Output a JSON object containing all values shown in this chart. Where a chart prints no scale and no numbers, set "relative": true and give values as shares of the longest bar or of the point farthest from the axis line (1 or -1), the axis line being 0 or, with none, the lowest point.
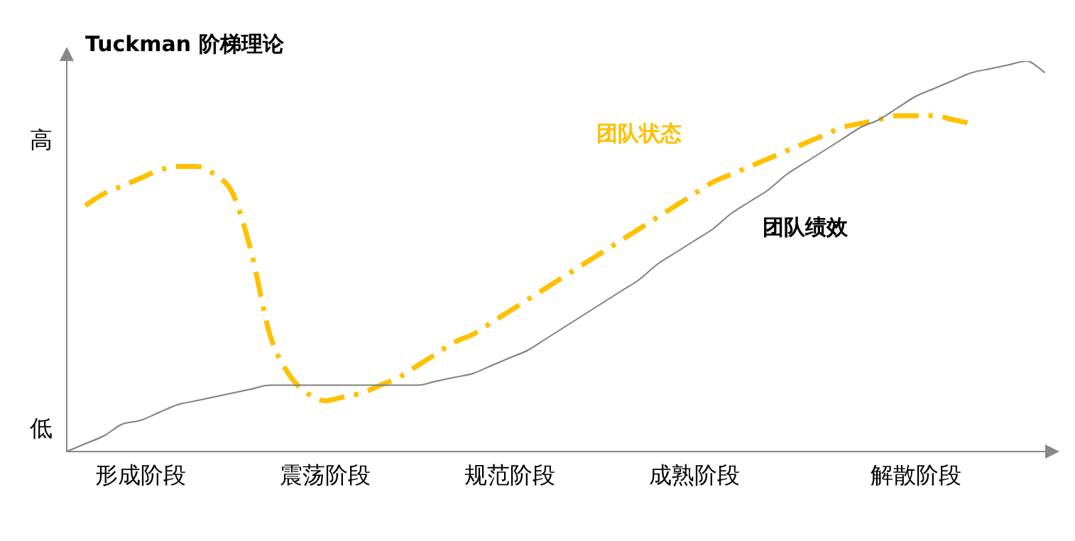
{
  "chart_data": {
    "type": "line",
    "title": "Tuckman 阶梯理论",
    "relative": true,
    "annotations": [
      "高",
      "低"
    ],
    "categories": [
      null,
      null,
      null,
      null,
      "形成阶段",
      null,
      null,
      null,
      null,
      null,
      null,
      null,
      null,
      null,
      "震荡阶段",
      null,
      null,
      null,
      null,
      null,
      null,
      null,
      null,
      null,
      "规范阶段",
      null,
      null,
      null,
      null,
      null,
      null,
      null,
      null,
      null,
      "成熟阶段",
      null,
      null,
      null,
      null,
      null,
      null,
      null,
      null,
      null,
      null,
      null,
      "解散阶段",
      null,
      null,
      null,
      null,
      null,
      null,
      null
    ],
    "grid": false,
    "legend": false,
    "marker": "none",
    "series": [
      {
        "name": "团队状态",
        "color": "#ffc000",
        "line_style": "dashed",
        "values": [
          null,
          0.63,
          0.66,
          0.68,
          0.7,
          0.72,
          0.73,
          0.73,
          0.71,
          0.66,
          0.51,
          0.3,
          0.2,
          0.15,
          0.13,
          0.14,
          0.15,
          0.17,
          0.19,
          0.22,
          0.25,
          0.28,
          0.3,
          0.33,
          0.36,
          0.39,
          0.42,
          0.45,
          0.48,
          0.51,
          0.54,
          0.57,
          0.6,
          0.63,
          0.66,
          0.69,
          0.71,
          0.73,
          0.75,
          0.77,
          0.79,
          0.81,
          0.83,
          0.84,
          0.85,
          0.86,
          0.86,
          0.86,
          0.85,
          0.84,
          null,
          null,
          null,
          null
        ]
      },
      {
        "name": "团队绩效",
        "color": "#808080",
        "line_style": "solid",
        "values": [
          0,
          0.02,
          0.04,
          0.07,
          0.08,
          0.1,
          0.12,
          0.13,
          0.14,
          0.15,
          0.16,
          0.17,
          0.17,
          0.17,
          0.17,
          0.17,
          0.17,
          0.17,
          0.17,
          0.17,
          0.18,
          0.19,
          0.2,
          0.22,
          0.24,
          0.26,
          0.29,
          0.32,
          0.35,
          0.38,
          0.41,
          0.44,
          0.48,
          0.51,
          0.54,
          0.57,
          0.61,
          0.64,
          0.67,
          0.71,
          0.74,
          0.77,
          0.8,
          0.83,
          0.85,
          0.88,
          0.91,
          0.93,
          0.95,
          0.97,
          0.98,
          0.99,
          1.0,
          0.97
        ]
      }
    ]
  }
}
